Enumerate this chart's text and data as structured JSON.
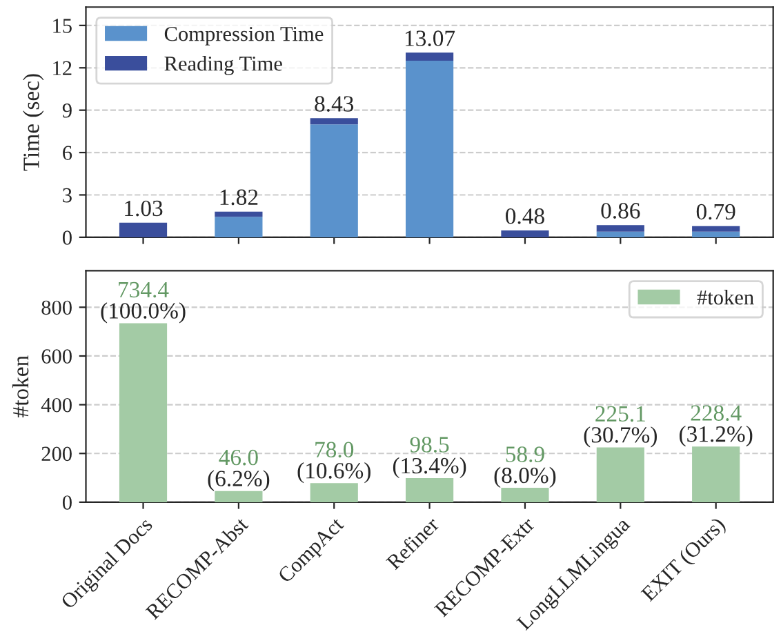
{
  "chart_data": [
    {
      "type": "bar",
      "stacked": true,
      "ylabel": "Time (sec)",
      "categories": [
        null,
        null,
        null,
        null,
        null,
        null,
        null
      ],
      "series": [
        {
          "name": "Compression Time",
          "color": "#5a92cc",
          "values": [
            0,
            1.45,
            8.0,
            12.5,
            0,
            0.4,
            0.4
          ]
        },
        {
          "name": "Reading Time",
          "color": "#3a4e9c",
          "values": [
            1.03,
            0.37,
            0.43,
            0.57,
            0.48,
            0.46,
            0.39
          ]
        }
      ],
      "totals": [
        "1.03",
        "1.82",
        "8.43",
        "13.07",
        "0.48",
        "0.86",
        "0.79"
      ],
      "ylim": [
        0,
        16.3
      ],
      "yticks": [
        0,
        3,
        6,
        9,
        12,
        15
      ],
      "grid": "y",
      "legend": "top left",
      "tick_labels": "y"
    },
    {
      "type": "bar",
      "ylabel": "#token",
      "categories": [
        "Original Docs",
        "RECOMP-Abst",
        "CompAct",
        "Refiner",
        "RECOMP-Extr",
        "LongLLMLingua",
        "EXIT (Ours)"
      ],
      "series": [
        {
          "name": "#token",
          "color": "#a3cba5",
          "values": [
            734.4,
            46.0,
            78.0,
            98.5,
            58.9,
            225.1,
            228.4
          ],
          "value_labels": [
            "734.4",
            "46.0",
            "78.0",
            "98.5",
            "58.9",
            "225.1",
            "228.4"
          ]
        }
      ],
      "annotations": [
        {
          "text": "(100.0%)",
          "x": "Original Docs",
          "y": 734.4
        },
        {
          "text": "(6.2%)",
          "x": "RECOMP-Abst",
          "y": 46.0
        },
        {
          "text": "(10.6%)",
          "x": "CompAct",
          "y": 78.0
        },
        {
          "text": "(13.4%)",
          "x": "Refiner",
          "y": 98.5
        },
        {
          "text": "(8.0%)",
          "x": "RECOMP-Extr",
          "y": 58.9
        },
        {
          "text": "(30.7%)",
          "x": "LongLLMLingua",
          "y": 225.1
        },
        {
          "text": "(31.2%)",
          "x": "EXIT (Ours)",
          "y": 228.4
        }
      ],
      "ylim": [
        0,
        950
      ],
      "yticks": [
        0,
        200,
        400,
        600,
        800
      ],
      "grid": "y",
      "legend": "top right"
    }
  ]
}
